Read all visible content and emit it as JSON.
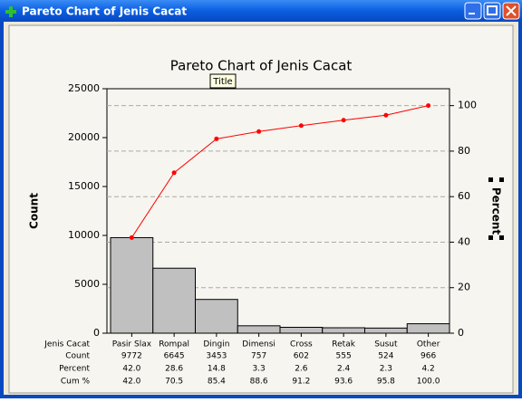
{
  "window": {
    "title": "Pareto Chart of Jenis Cacat"
  },
  "chart_data": {
    "type": "pareto",
    "title": "Pareto Chart of Jenis Cacat",
    "tooltip": "Title",
    "ylabel": "Count",
    "y2label": "Percent",
    "xlabel": "Jenis Cacat",
    "categories": [
      "Pasir Slax",
      "Rompal",
      "Dingin",
      "Dimensi",
      "Cross",
      "Retak",
      "Susut",
      "Other"
    ],
    "series": [
      {
        "name": "Count",
        "color": "#c0c0c0",
        "values": [
          9772,
          6645,
          3453,
          757,
          602,
          555,
          524,
          966
        ]
      },
      {
        "name": "Percent",
        "values": [
          42,
          28.6,
          14.8,
          3.3,
          2.6,
          2.4,
          2.3,
          4.2
        ],
        "value_labels": [
          "42.0",
          "28.6",
          "14.8",
          "3.3",
          "2.6",
          "2.4",
          "2.3",
          "4.2"
        ]
      },
      {
        "name": "Cum %",
        "color": "#ff0000",
        "axis": "y2",
        "values": [
          42,
          70.5,
          85.4,
          88.6,
          91.2,
          93.6,
          95.8,
          100
        ],
        "value_labels": [
          "42.0",
          "70.5",
          "85.4",
          "88.6",
          "91.2",
          "93.6",
          "95.8",
          "100.0"
        ]
      }
    ],
    "ylim": [
      0,
      25000
    ],
    "yticks": [
      0,
      5000,
      10000,
      15000,
      20000,
      25000
    ],
    "y2lim": [
      0,
      107.42
    ],
    "y2ticks": [
      0,
      20,
      40,
      60,
      80,
      100
    ],
    "y2grid": true
  }
}
